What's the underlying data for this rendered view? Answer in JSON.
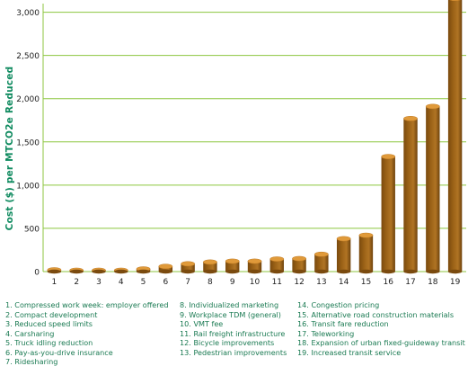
{
  "chart_data": {
    "type": "bar",
    "title": "",
    "xlabel": "",
    "ylabel": "Cost ($) per MTCO2e Reduced",
    "ylim": [
      0,
      3100
    ],
    "yticks": [
      0,
      500,
      1000,
      1500,
      2000,
      2500,
      3000
    ],
    "ytick_labels": [
      "0",
      "500",
      "1,000",
      "1,500",
      "2,000",
      "2,500",
      "3,000"
    ],
    "categories": [
      "1",
      "2",
      "3",
      "4",
      "5",
      "6",
      "7",
      "8",
      "9",
      "10",
      "11",
      "12",
      "13",
      "14",
      "15",
      "16",
      "17",
      "18",
      "19"
    ],
    "values": [
      20,
      15,
      15,
      15,
      30,
      60,
      90,
      110,
      120,
      120,
      145,
      150,
      200,
      380,
      420,
      1330,
      1770,
      1910,
      3160
    ],
    "grid": true,
    "colors": {
      "bar": "#9a6116",
      "bar_top": "#e09a3a",
      "grid": "#8cc63f",
      "axis_text": "#222222",
      "label": "#0f8a5f"
    }
  },
  "legend": {
    "col1": [
      "1.  Compressed work week: employer offered",
      "2.  Compact development",
      "3.  Reduced speed limits",
      "4.  Carsharing",
      "5.  Truck idling reduction",
      "6.  Pay-as-you-drive insurance",
      "7.  Ridesharing"
    ],
    "col2": [
      "8.    Individualized marketing",
      "9.    Workplace TDM (general)",
      "10. VMT fee",
      "11. Rail freight infrastructure",
      "12. Bicycle improvements",
      "13. Pedestrian improvements"
    ],
    "col3": [
      "14. Congestion pricing",
      "15. Alternative road construction materials",
      "16. Transit fare reduction",
      "17. Teleworking",
      "18. Expansion of urban fixed-guideway transit",
      "19. Increased transit service"
    ]
  }
}
